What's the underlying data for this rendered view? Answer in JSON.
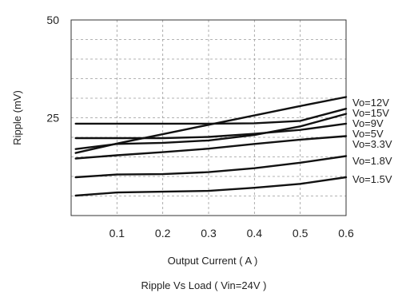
{
  "chart_data": {
    "type": "line",
    "title": "",
    "caption": "Ripple  Vs Load ( Vin=24V )",
    "xlabel": "Output Current ( A )",
    "ylabel": "Ripple (mV)",
    "xlim": [
      0,
      0.6
    ],
    "ylim": [
      0,
      50
    ],
    "xticks": [
      0.1,
      0.2,
      0.3,
      0.4,
      0.5,
      0.6
    ],
    "xtick_labels": [
      "0.1",
      "0.2",
      "0.3",
      "0.4",
      "0.5",
      "0.6"
    ],
    "yticks": [
      25,
      50
    ],
    "ytick_labels": [
      "25",
      "50"
    ],
    "grid": true,
    "legend_position": "right",
    "series": [
      {
        "name": "Vo=12V",
        "x": [
          0.01,
          0.1,
          0.2,
          0.3,
          0.4,
          0.5,
          0.6
        ],
        "y": [
          16.0,
          18.4,
          20.8,
          23.2,
          25.6,
          28.0,
          30.3
        ]
      },
      {
        "name": "Vo=15V",
        "x": [
          0.01,
          0.1,
          0.2,
          0.3,
          0.4,
          0.5,
          0.6
        ],
        "y": [
          23.5,
          23.5,
          23.5,
          23.5,
          23.6,
          24.2,
          27.3
        ]
      },
      {
        "name": "Vo=9V",
        "x": [
          0.01,
          0.1,
          0.2,
          0.3,
          0.4,
          0.5,
          0.6
        ],
        "y": [
          17.0,
          18.3,
          18.6,
          19.2,
          20.6,
          22.8,
          26.0
        ]
      },
      {
        "name": "Vo=5V",
        "x": [
          0.01,
          0.1,
          0.2,
          0.3,
          0.4,
          0.5,
          0.6
        ],
        "y": [
          19.8,
          19.8,
          19.8,
          20.1,
          20.9,
          21.9,
          23.5
        ]
      },
      {
        "name": "Vo=3.3V",
        "x": [
          0.01,
          0.1,
          0.2,
          0.3,
          0.4,
          0.5,
          0.6
        ],
        "y": [
          14.6,
          15.4,
          16.2,
          17.1,
          18.3,
          19.4,
          20.3
        ]
      },
      {
        "name": "Vo=1.8V",
        "x": [
          0.01,
          0.1,
          0.2,
          0.3,
          0.4,
          0.5,
          0.6
        ],
        "y": [
          9.8,
          10.5,
          10.6,
          11.1,
          12.1,
          13.5,
          15.2
        ]
      },
      {
        "name": "Vo=1.5V",
        "x": [
          0.01,
          0.1,
          0.2,
          0.3,
          0.4,
          0.5,
          0.6
        ],
        "y": [
          5.1,
          5.9,
          6.1,
          6.3,
          7.1,
          8.1,
          9.8
        ]
      }
    ],
    "colors": {
      "line": "#111111",
      "grid": "#9a9a9a",
      "axis": "#333333"
    }
  }
}
